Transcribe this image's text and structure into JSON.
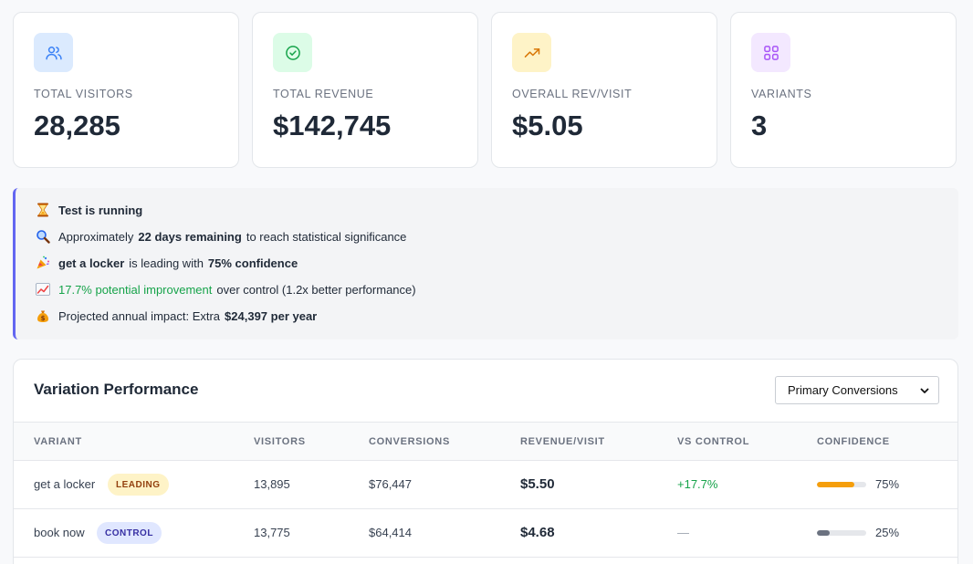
{
  "colors": {
    "accent": "#6366f1",
    "positive": "#16a34a",
    "leading_bar": "#f59e0b",
    "control_bar": "#6b7280"
  },
  "stats": [
    {
      "label": "TOTAL VISITORS",
      "value": "28,285",
      "icon": "users-icon",
      "icon_bg": "#dbeafe",
      "icon_color": "#3b82f6"
    },
    {
      "label": "TOTAL REVENUE",
      "value": "$142,745",
      "icon": "check-circle-icon",
      "icon_bg": "#dcfce7",
      "icon_color": "#16a34a"
    },
    {
      "label": "OVERALL REV/VISIT",
      "value": "$5.05",
      "icon": "trending-up-icon",
      "icon_bg": "#fef3c7",
      "icon_color": "#d97706"
    },
    {
      "label": "VARIANTS",
      "value": "3",
      "icon": "grid-icon",
      "icon_bg": "#f3e8ff",
      "icon_color": "#a855f7"
    }
  ],
  "status": {
    "title": "Test is running",
    "remaining_prefix": "Approximately",
    "remaining_bold": "22 days remaining",
    "remaining_suffix": "to reach statistical significance",
    "leader_name": "get a locker",
    "leader_mid": "is leading with",
    "leader_confidence": "75% confidence",
    "improvement": "17.7% potential improvement",
    "improvement_suffix": "over control (1.2x better performance)",
    "impact_prefix": "Projected annual impact: Extra",
    "impact_value": "$24,397 per year"
  },
  "performance": {
    "title": "Variation Performance",
    "metric_select": "Primary Conversions",
    "columns": [
      "VARIANT",
      "VISITORS",
      "CONVERSIONS",
      "REVENUE/VISIT",
      "VS CONTROL",
      "CONFIDENCE"
    ],
    "rows": [
      {
        "variant": "get a locker",
        "badge": "LEADING",
        "visitors": "13,895",
        "conversions": "$76,447",
        "rev_per_visit": "$5.50",
        "vs_control": "+17.7%",
        "confidence": "75%",
        "confidence_value": 0.75
      },
      {
        "variant": "book now",
        "badge": "CONTROL",
        "visitors": "13,775",
        "conversions": "$64,414",
        "rev_per_visit": "$4.68",
        "vs_control": "—",
        "confidence": "25%",
        "confidence_value": 0.25
      }
    ]
  }
}
